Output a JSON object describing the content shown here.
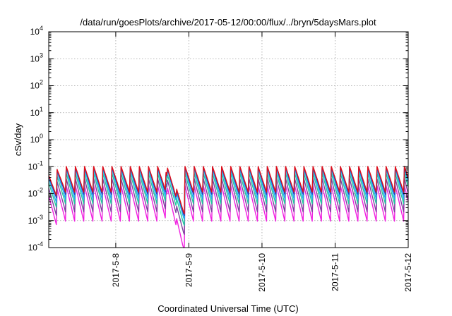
{
  "chart_data": {
    "type": "line",
    "title": "/data/run/goesPlots/archive/2017-05-12/00:00/flux/../bryn/5daysMars.plot",
    "xlabel": "Coordinated Universal Time (UTC)",
    "ylabel": "cSv/day",
    "x_range": [
      "2017-05-07T02:00",
      "2017-05-12T00:00"
    ],
    "x_ticks": [
      {
        "value": "2017-05-08",
        "label": "2017-5-8"
      },
      {
        "value": "2017-05-09",
        "label": "2017-5-9"
      },
      {
        "value": "2017-05-10",
        "label": "2017-5-10"
      },
      {
        "value": "2017-05-11",
        "label": "2017-5-11"
      },
      {
        "value": "2017-05-12",
        "label": "2017-5-12"
      }
    ],
    "y_scale": "log",
    "ylim": [
      0.0001,
      10000
    ],
    "y_ticks": [
      {
        "value": 0.0001,
        "base": "10",
        "exp": "-4"
      },
      {
        "value": 0.001,
        "base": "10",
        "exp": "-3"
      },
      {
        "value": 0.01,
        "base": "10",
        "exp": "-2"
      },
      {
        "value": 0.1,
        "base": "10",
        "exp": "-1"
      },
      {
        "value": 1,
        "base": "10",
        "exp": "0"
      },
      {
        "value": 10,
        "base": "10",
        "exp": "1"
      },
      {
        "value": 100,
        "base": "10",
        "exp": "2"
      },
      {
        "value": 1000,
        "base": "10",
        "exp": "3"
      },
      {
        "value": 10000,
        "base": "10",
        "exp": "4"
      }
    ],
    "grid": true,
    "series": [
      {
        "color": "#e0101a",
        "sawtooth_peak": 0.12,
        "sawtooth_trough": 0.011,
        "dip_min": 0.0035
      },
      {
        "color": "#1a40c8",
        "sawtooth_peak": 0.115,
        "sawtooth_trough": 0.009,
        "dip_min": 0.003
      },
      {
        "color": "#20b0f0",
        "sawtooth_peak": 0.1,
        "sawtooth_trough": 0.006,
        "dip_min": 0.0022
      },
      {
        "color": "#20c8a0",
        "sawtooth_peak": 0.07,
        "sawtooth_trough": 0.004,
        "dip_min": 0.0013
      },
      {
        "color": "#8040a0",
        "sawtooth_peak": 0.045,
        "sawtooth_trough": 0.002,
        "dip_min": 0.0006
      },
      {
        "color": "#f020e0",
        "sawtooth_peak": 0.025,
        "sawtooth_trough": 0.0009,
        "dip_min": 0.00015
      }
    ]
  }
}
